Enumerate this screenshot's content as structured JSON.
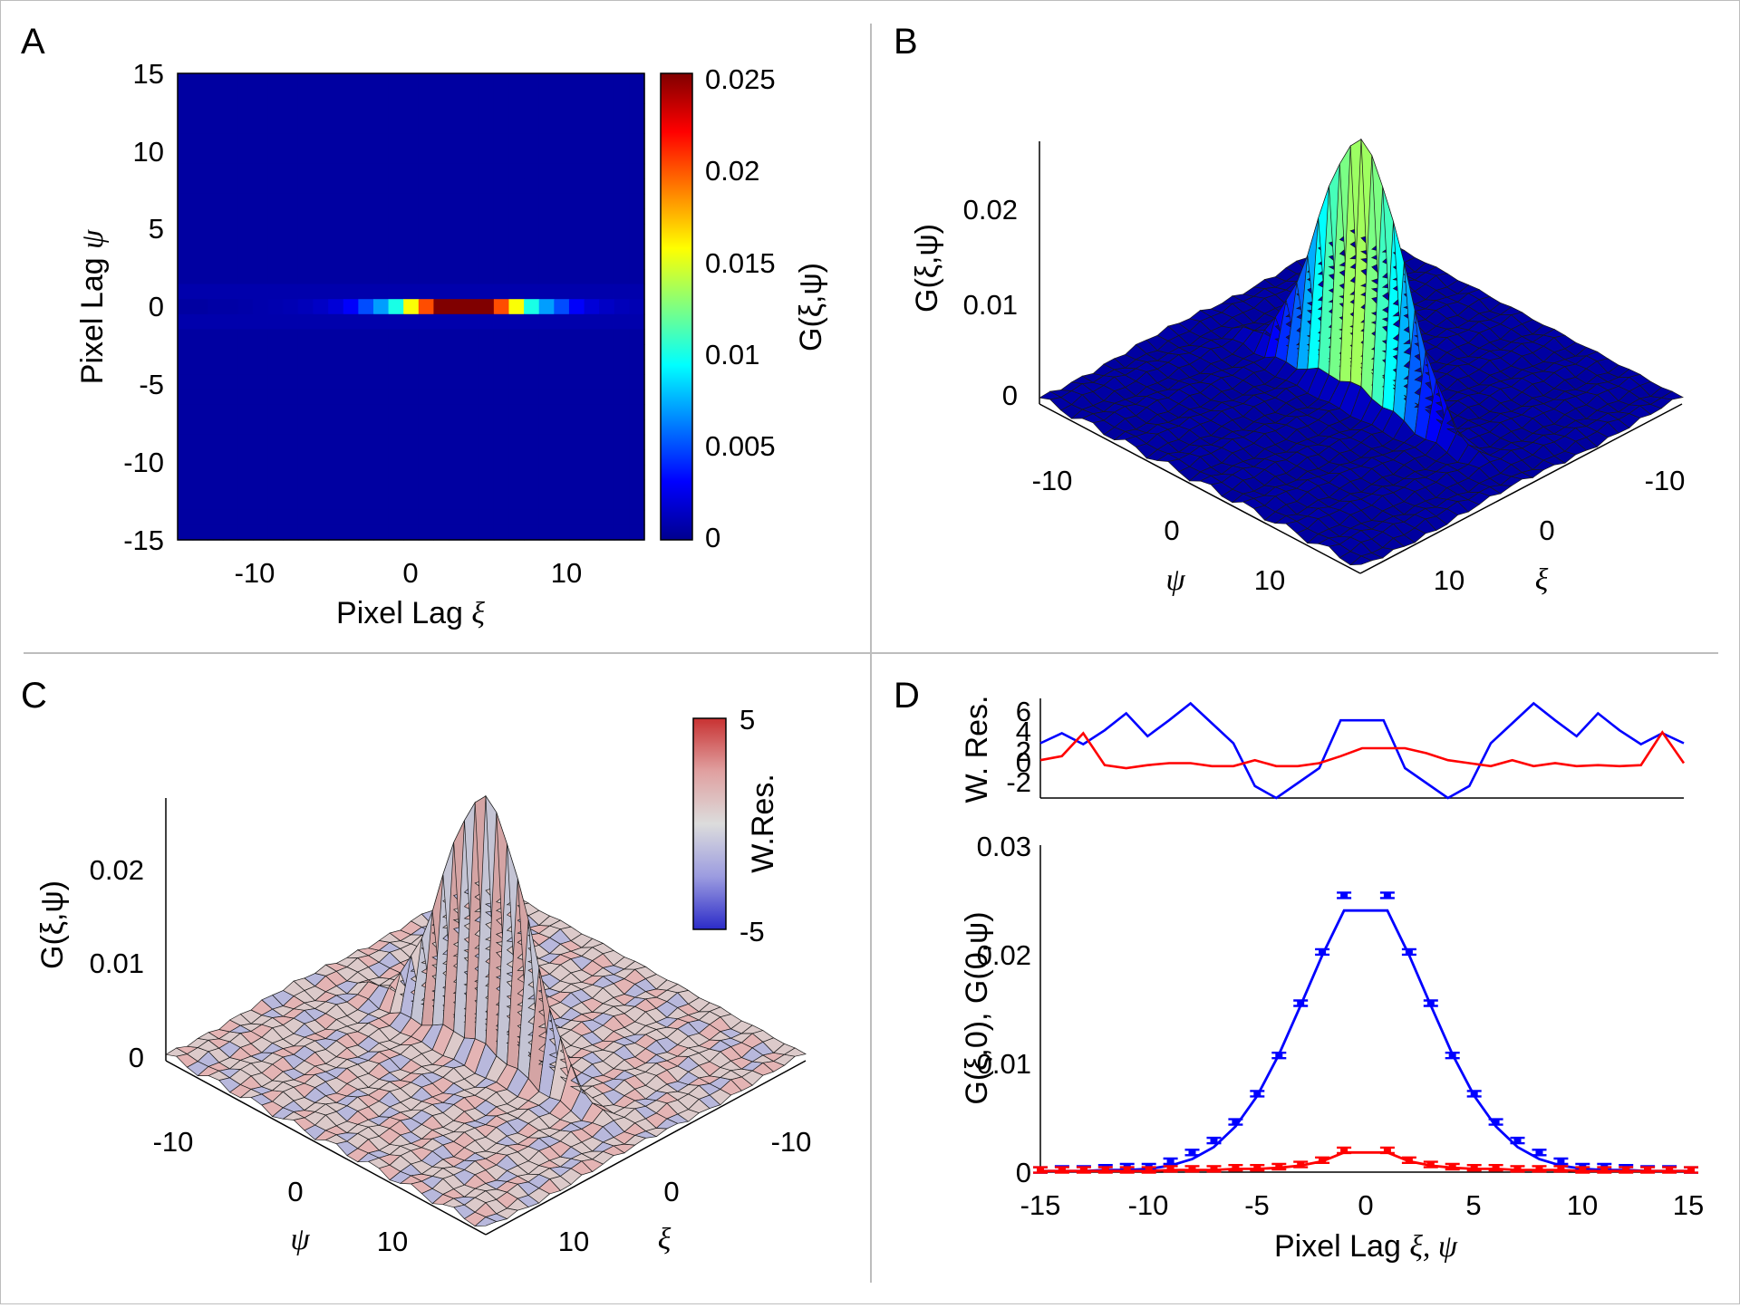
{
  "figure": {
    "panel_labels": [
      "A",
      "B",
      "C",
      "D"
    ]
  },
  "panelA": {
    "xlabel_text": "Pixel Lag ",
    "xlabel_sym": "ξ",
    "ylabel_text": "Pixel Lag ",
    "ylabel_sym": "ψ",
    "x_ticks": [
      "-10",
      "0",
      "10"
    ],
    "y_ticks": [
      "15",
      "10",
      "5",
      "0",
      "-5",
      "-10",
      "-15"
    ],
    "colorbar_label": "G(ξ,ψ)",
    "colorbar_ticks": [
      "0.025",
      "0.02",
      "0.015",
      "0.01",
      "0.005",
      "0"
    ]
  },
  "panelB": {
    "zlabel": "G(ξ,ψ)",
    "z_ticks": [
      "0.02",
      "0.01",
      "0"
    ],
    "psi_ticks": [
      "-10",
      "0",
      "10"
    ],
    "xi_ticks": [
      "-10",
      "0",
      "10"
    ],
    "psi_label": "ψ",
    "xi_label": "ξ"
  },
  "panelC": {
    "zlabel": "G(ξ,ψ)",
    "z_ticks": [
      "0.02",
      "0.01",
      "0"
    ],
    "psi_ticks": [
      "-10",
      "0",
      "10"
    ],
    "xi_ticks": [
      "-10",
      "0",
      "10"
    ],
    "psi_label": "ψ",
    "xi_label": "ξ",
    "colorbar_label": "W.Res.",
    "colorbar_ticks": [
      "5",
      "-5"
    ]
  },
  "panelD": {
    "top_ylabel": "W. Res.",
    "top_y_ticks": [
      "6",
      "4",
      "2",
      "0",
      "-2"
    ],
    "bottom_ylabel": "G(ξ,0), G(0,ψ)",
    "bottom_y_ticks": [
      "0.03",
      "0.02",
      "0.01",
      "0"
    ],
    "x_ticks": [
      "-15",
      "-10",
      "-5",
      "0",
      "5",
      "10",
      "15"
    ],
    "xlabel_text": "Pixel Lag ",
    "xlabel_sym": "ξ, ψ"
  },
  "chart_data": [
    {
      "type": "heatmap",
      "panel": "A",
      "x_range": [
        -15,
        15
      ],
      "y_range": [
        -15,
        15
      ],
      "color_range": [
        0,
        0.025
      ],
      "colormap": "jet",
      "row_psi0_values": [
        0.0005,
        0.0005,
        0.0006,
        0.0006,
        0.0007,
        0.0008,
        0.0009,
        0.001,
        0.0012,
        0.0015,
        0.002,
        0.003,
        0.005,
        0.007,
        0.01,
        0.0155,
        0.02,
        0.025,
        0.025,
        0.025,
        0.025,
        0.02,
        0.0155,
        0.01,
        0.007,
        0.005,
        0.003,
        0.002,
        0.0015,
        0.0012,
        0.001
      ],
      "background_value": 0.0005
    },
    {
      "type": "surface",
      "panel": "B",
      "x_range": [
        -15,
        15
      ],
      "y_range": [
        -15,
        15
      ],
      "z_range": [
        0,
        0.025
      ],
      "peak": 0.025,
      "colormap": "jet"
    },
    {
      "type": "surface",
      "panel": "C",
      "x_range": [
        -15,
        15
      ],
      "y_range": [
        -15,
        15
      ],
      "z_range": [
        0,
        0.025
      ],
      "peak": 0.025,
      "color": "weighted residuals",
      "color_range": [
        -5,
        5
      ]
    },
    {
      "type": "line",
      "panel": "D-top",
      "ylabel": "W. Res.",
      "ylim": [
        -3,
        7
      ],
      "x": [
        -15,
        -14,
        -13,
        -12,
        -11,
        -10,
        -9,
        -8,
        -7,
        -6,
        -5,
        -4,
        -3,
        -2,
        -1,
        0,
        1,
        2,
        3,
        4,
        5,
        6,
        7,
        8,
        9,
        10,
        11,
        12,
        13,
        14,
        15
      ],
      "series": [
        {
          "name": "xi",
          "color": "#0000ff",
          "values": [
            2.5,
            3.5,
            2.4,
            3.8,
            5.5,
            3.2,
            4.8,
            6.5,
            4.5,
            2.5,
            -1.8,
            -3,
            -1.5,
            0,
            4.8,
            4.8,
            4.8,
            0,
            -1.5,
            -3,
            -1.8,
            2.5,
            4.5,
            6.5,
            4.8,
            3.2,
            5.5,
            3.8,
            2.4,
            3.5,
            2.5
          ]
        },
        {
          "name": "psi",
          "color": "#ff0000",
          "values": [
            0.8,
            1.2,
            3.5,
            0.3,
            0,
            0.3,
            0.5,
            0.5,
            0.2,
            0.2,
            0.8,
            0.2,
            0.2,
            0.5,
            1.2,
            2,
            2,
            2,
            1.5,
            0.8,
            0.5,
            0.2,
            0.8,
            0.2,
            0.5,
            0.2,
            0.3,
            0.2,
            0.3,
            3.6,
            0.5
          ]
        }
      ]
    },
    {
      "type": "line",
      "panel": "D-bottom",
      "xlabel": "Pixel Lag ξ, ψ",
      "ylabel": "G(ξ,0), G(0,ψ)",
      "xlim": [
        -15,
        15
      ],
      "ylim": [
        0,
        0.03
      ],
      "x": [
        -15,
        -14,
        -13,
        -12,
        -11,
        -10,
        -9,
        -8,
        -7,
        -6,
        -5,
        -4,
        -3,
        -2,
        -1,
        0,
        1,
        2,
        3,
        4,
        5,
        6,
        7,
        8,
        9,
        10,
        11,
        12,
        13,
        14,
        15
      ],
      "series": [
        {
          "name": "G(xi,0) data",
          "color": "#0000ff",
          "style": "errorbar",
          "values": [
            0.0002,
            0.0003,
            0.0003,
            0.0004,
            0.0005,
            0.0005,
            0.001,
            0.0018,
            0.0029,
            0.0046,
            0.0072,
            0.0107,
            0.0155,
            0.0202,
            0.0254,
            null,
            0.0254,
            0.0202,
            0.0155,
            0.0107,
            0.0072,
            0.0046,
            0.0029,
            0.0018,
            0.001,
            0.0005,
            0.0005,
            0.0004,
            0.0003,
            0.0003,
            0.0002
          ]
        },
        {
          "name": "G(xi,0) fit",
          "color": "#0000ff",
          "style": "line",
          "values": [
            0.0001,
            0.0001,
            0.0001,
            0.0002,
            0.0002,
            0.0003,
            0.0006,
            0.0012,
            0.0023,
            0.0042,
            0.007,
            0.0108,
            0.0153,
            0.0199,
            0.024,
            0.024,
            0.024,
            0.0199,
            0.0153,
            0.0108,
            0.007,
            0.0042,
            0.0023,
            0.0012,
            0.0006,
            0.0003,
            0.0002,
            0.0002,
            0.0001,
            0.0001,
            0.0001
          ]
        },
        {
          "name": "G(0,psi) data",
          "color": "#ff0000",
          "style": "errorbar",
          "values": [
            0.0002,
            0.0002,
            0.0002,
            0.0002,
            0.0002,
            0.0002,
            0.0003,
            0.0003,
            0.0003,
            0.0004,
            0.0004,
            0.0005,
            0.0007,
            0.0011,
            0.002,
            null,
            0.002,
            0.0011,
            0.0007,
            0.0005,
            0.0004,
            0.0004,
            0.0003,
            0.0003,
            0.0003,
            0.0002,
            0.0002,
            0.0002,
            0.0002,
            0.0002,
            0.0002
          ]
        },
        {
          "name": "G(0,psi) fit",
          "color": "#ff0000",
          "style": "line",
          "values": [
            0.0001,
            0.0001,
            0.0001,
            0.0001,
            0.0001,
            0.0001,
            0.0002,
            0.0002,
            0.0002,
            0.0003,
            0.0003,
            0.0004,
            0.0006,
            0.001,
            0.0018,
            0.0018,
            0.0018,
            0.001,
            0.0006,
            0.0004,
            0.0003,
            0.0003,
            0.0002,
            0.0002,
            0.0002,
            0.0001,
            0.0001,
            0.0001,
            0.0001,
            0.0001,
            0.0001
          ]
        }
      ]
    }
  ]
}
